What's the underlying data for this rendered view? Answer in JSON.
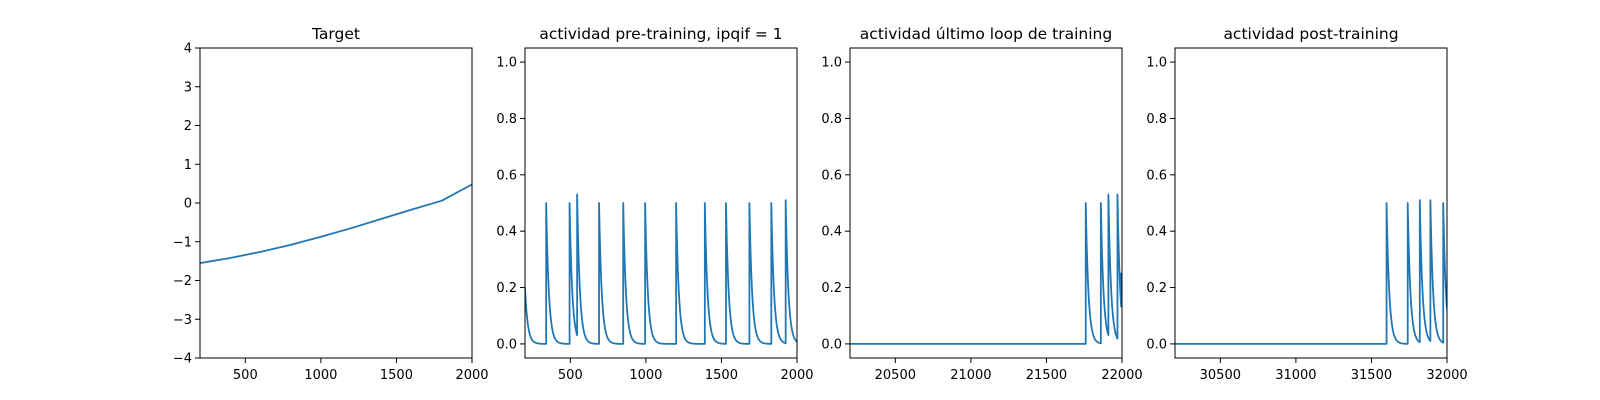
{
  "chart_data": [
    {
      "type": "line",
      "title": "Target",
      "xlim": [
        200,
        2000
      ],
      "ylim": [
        -4,
        4
      ],
      "xticks": [
        500,
        1000,
        1500,
        2000
      ],
      "xticklabels": [
        "500",
        "1000",
        "1500",
        "2000"
      ],
      "yticks": [
        -4,
        -3,
        -2,
        -1,
        0,
        1,
        2,
        3,
        4
      ],
      "yticklabels": [
        "−4",
        "−3",
        "−2",
        "−1",
        "0",
        "1",
        "2",
        "3",
        "4"
      ],
      "series": [
        {
          "color": "#1f77b4",
          "x": [
            200,
            400,
            600,
            800,
            1000,
            1200,
            1400,
            1600,
            1800,
            2000
          ],
          "y": [
            -1.55,
            -1.42,
            -1.26,
            -1.08,
            -0.87,
            -0.65,
            -0.41,
            -0.17,
            0.06,
            0.48
          ]
        }
      ]
    },
    {
      "type": "line",
      "title": "actividad pre-training, ipqif = 1",
      "xlim": [
        200,
        2000
      ],
      "ylim": [
        -0.05,
        1.05
      ],
      "xticks": [
        500,
        1000,
        1500,
        2000
      ],
      "xticklabels": [
        "500",
        "1000",
        "1500",
        "2000"
      ],
      "yticks": [
        0.0,
        0.2,
        0.4,
        0.6,
        0.8,
        1.0
      ],
      "yticklabels": [
        "0.0",
        "0.2",
        "0.4",
        "0.6",
        "0.8",
        "1.0"
      ],
      "initial_value": 0.2,
      "decay_tau": 18,
      "spike_times": [
        340,
        495,
        545,
        690,
        850,
        995,
        1200,
        1390,
        1530,
        1685,
        1830,
        1925
      ],
      "spike_peaks": [
        0.5,
        0.5,
        0.53,
        0.5,
        0.5,
        0.5,
        0.5,
        0.5,
        0.5,
        0.5,
        0.5,
        0.51
      ],
      "series": [
        {
          "color": "#1f77b4"
        }
      ]
    },
    {
      "type": "line",
      "title": "actividad último loop de training",
      "xlim": [
        20200,
        22000
      ],
      "ylim": [
        -0.05,
        1.05
      ],
      "xticks": [
        20500,
        21000,
        21500,
        22000
      ],
      "xticklabels": [
        "20500",
        "21000",
        "21500",
        "22000"
      ],
      "yticks": [
        0.0,
        0.2,
        0.4,
        0.6,
        0.8,
        1.0
      ],
      "yticklabels": [
        "0.0",
        "0.2",
        "0.4",
        "0.6",
        "0.8",
        "1.0"
      ],
      "initial_value": 0.0,
      "decay_tau": 18,
      "spike_times": [
        21760,
        21860,
        21910,
        21970,
        21995
      ],
      "spike_peaks": [
        0.5,
        0.5,
        0.53,
        0.53,
        0.25
      ],
      "series": [
        {
          "color": "#1f77b4"
        }
      ]
    },
    {
      "type": "line",
      "title": "actividad post-training",
      "xlim": [
        30200,
        32000
      ],
      "ylim": [
        -0.05,
        1.05
      ],
      "xticks": [
        30500,
        31000,
        31500,
        32000
      ],
      "xticklabels": [
        "30500",
        "31000",
        "31500",
        "32000"
      ],
      "yticks": [
        0.0,
        0.2,
        0.4,
        0.6,
        0.8,
        1.0
      ],
      "yticklabels": [
        "0.0",
        "0.2",
        "0.4",
        "0.6",
        "0.8",
        "1.0"
      ],
      "initial_value": 0.0,
      "decay_tau": 18,
      "spike_times": [
        31600,
        31740,
        31820,
        31890,
        31975
      ],
      "spike_peaks": [
        0.5,
        0.5,
        0.51,
        0.51,
        0.5
      ],
      "series": [
        {
          "color": "#1f77b4"
        }
      ]
    }
  ]
}
